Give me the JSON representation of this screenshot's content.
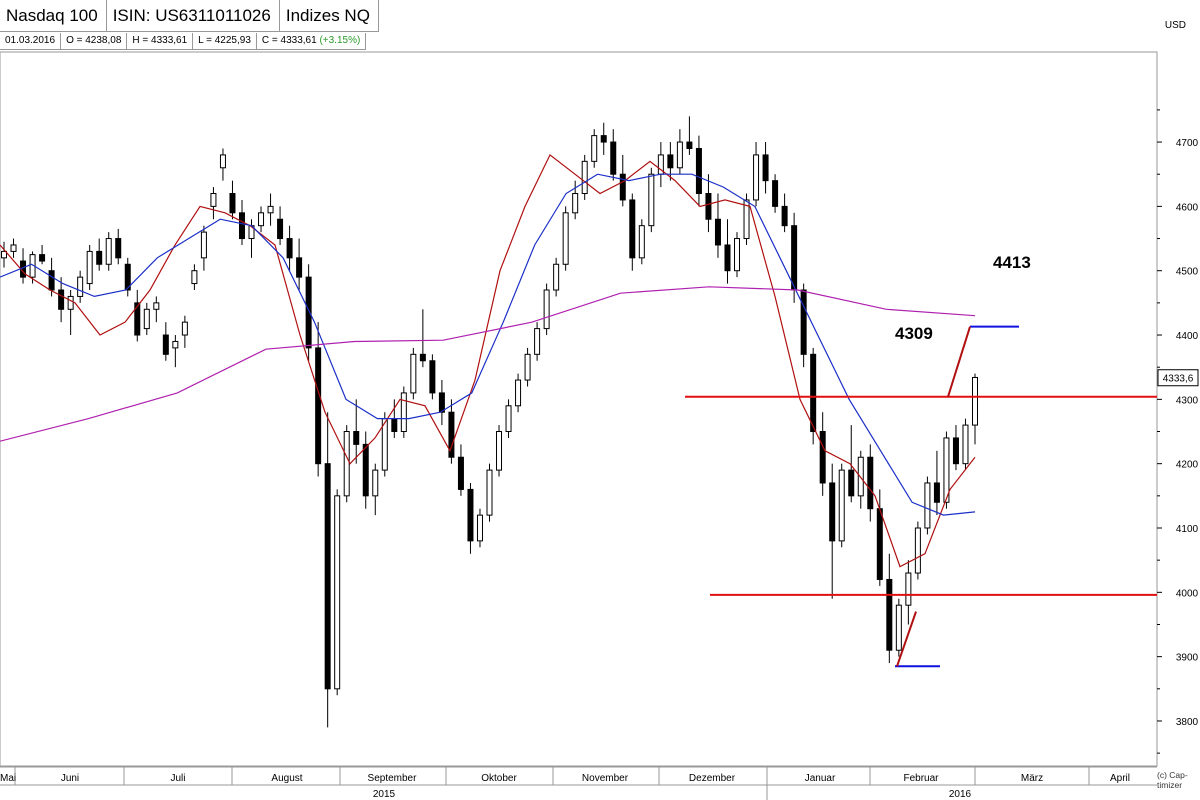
{
  "header": {
    "title": "Nasdaq 100",
    "isin": "ISIN: US6311011026",
    "exchange": "Indizes NQ"
  },
  "quote": {
    "date": "01.03.2016",
    "open": "O = 4238,08",
    "high": "H = 4333,61",
    "low": "L = 4225,93",
    "close": "C = 4333,61",
    "change": "(+3.15%)"
  },
  "currency": "USD",
  "copyright_line1": "(c) Cap-",
  "copyright_line2": "timizer",
  "chart_data": {
    "type": "line",
    "title": "",
    "ylim": [
      3730,
      4840
    ],
    "y_ticks": [
      3800,
      3900,
      4000,
      4100,
      4200,
      4300,
      4400,
      4500,
      4600,
      4700
    ],
    "y_tick_labels": [
      "3800",
      "3900",
      "4000",
      "4100",
      "4200",
      "4300",
      "4400",
      "4500",
      "4600",
      "4700"
    ],
    "last_price_label": "4333,6",
    "x_months": [
      "Mai",
      "Juni",
      "Juli",
      "August",
      "September",
      "Oktober",
      "November",
      "Dezember",
      "Januar",
      "Februar",
      "März",
      "April"
    ],
    "x_years": [
      "2015",
      "2016"
    ],
    "annotations": [
      {
        "text": "4413",
        "value": 4413
      },
      {
        "text": "4309",
        "value": 4309
      }
    ],
    "horizontal_lines": [
      4304,
      3996
    ],
    "target_lines": [
      4413,
      3885
    ],
    "series": [
      {
        "name": "",
        "color": "#b01010",
        "role": "fast moving average",
        "points": [
          [
            "Mai",
            4540
          ],
          [
            "Juni",
            4495
          ],
          [
            "Juni",
            4470
          ],
          [
            "Juli",
            4450
          ],
          [
            "Juli",
            4400
          ],
          [
            "Juli",
            4420
          ],
          [
            "Juli",
            4470
          ],
          [
            "Juli",
            4540
          ],
          [
            "Juli",
            4600
          ],
          [
            "August",
            4590
          ],
          [
            "August",
            4570
          ],
          [
            "August",
            4540
          ],
          [
            "August",
            4400
          ],
          [
            "August",
            4280
          ],
          [
            "September",
            4200
          ],
          [
            "September",
            4240
          ],
          [
            "September",
            4300
          ],
          [
            "September",
            4290
          ],
          [
            "Oktober",
            4220
          ],
          [
            "Oktober",
            4330
          ],
          [
            "Oktober",
            4500
          ],
          [
            "Oktober",
            4600
          ],
          [
            "November",
            4680
          ],
          [
            "November",
            4650
          ],
          [
            "November",
            4620
          ],
          [
            "November",
            4640
          ],
          [
            "November",
            4670
          ],
          [
            "Dezember",
            4640
          ],
          [
            "Dezember",
            4600
          ],
          [
            "Dezember",
            4610
          ],
          [
            "Dezember",
            4600
          ],
          [
            "Januar",
            4460
          ],
          [
            "Januar",
            4300
          ],
          [
            "Januar",
            4220
          ],
          [
            "Januar",
            4200
          ],
          [
            "Februar",
            4150
          ],
          [
            "Februar",
            4040
          ],
          [
            "Februar",
            4060
          ],
          [
            "Februar",
            4160
          ],
          [
            "Februar",
            4210
          ]
        ]
      },
      {
        "name": "",
        "color": "#1b2fc7",
        "role": "slow moving average",
        "points": [
          [
            "Mai",
            4490
          ],
          [
            "Juni",
            4510
          ],
          [
            "Juni",
            4480
          ],
          [
            "Juli",
            4460
          ],
          [
            "Juli",
            4470
          ],
          [
            "Juli",
            4520
          ],
          [
            "Juli",
            4550
          ],
          [
            "Juli",
            4580
          ],
          [
            "August",
            4570
          ],
          [
            "August",
            4520
          ],
          [
            "August",
            4420
          ],
          [
            "September",
            4300
          ],
          [
            "September",
            4270
          ],
          [
            "September",
            4270
          ],
          [
            "Oktober",
            4280
          ],
          [
            "Oktober",
            4310
          ],
          [
            "Oktober",
            4420
          ],
          [
            "Oktober",
            4540
          ],
          [
            "November",
            4620
          ],
          [
            "November",
            4650
          ],
          [
            "November",
            4640
          ],
          [
            "November",
            4650
          ],
          [
            "Dezember",
            4650
          ],
          [
            "Dezember",
            4630
          ],
          [
            "Dezember",
            4600
          ],
          [
            "Januar",
            4500
          ],
          [
            "Januar",
            4400
          ],
          [
            "Januar",
            4300
          ],
          [
            "Januar",
            4220
          ],
          [
            "Februar",
            4140
          ],
          [
            "Februar",
            4120
          ],
          [
            "Februar",
            4125
          ]
        ]
      },
      {
        "name": "",
        "color": "#b020b0",
        "role": "long moving average",
        "points": [
          [
            "Mai",
            4235
          ],
          [
            "Juni",
            4270
          ],
          [
            "Juli",
            4310
          ],
          [
            "August",
            4378
          ],
          [
            "September",
            4390
          ],
          [
            "Oktober",
            4392
          ],
          [
            "November",
            4420
          ],
          [
            "Dezember",
            4465
          ],
          [
            "Januar",
            4475
          ],
          [
            "Januar",
            4470
          ],
          [
            "Februar",
            4440
          ],
          [
            "Februar",
            4430
          ]
        ]
      }
    ],
    "candles_ohlc": [
      [
        4520,
        4545,
        4505,
        4530
      ],
      [
        4530,
        4550,
        4520,
        4540
      ],
      [
        4515,
        4535,
        4480,
        4490
      ],
      [
        4490,
        4530,
        4480,
        4525
      ],
      [
        4525,
        4540,
        4510,
        4515
      ],
      [
        4500,
        4520,
        4460,
        4470
      ],
      [
        4470,
        4490,
        4420,
        4440
      ],
      [
        4440,
        4470,
        4400,
        4460
      ],
      [
        4460,
        4500,
        4450,
        4490
      ],
      [
        4480,
        4540,
        4470,
        4530
      ],
      [
        4530,
        4550,
        4500,
        4510
      ],
      [
        4510,
        4560,
        4500,
        4550
      ],
      [
        4550,
        4565,
        4510,
        4520
      ],
      [
        4510,
        4520,
        4460,
        4470
      ],
      [
        4450,
        4470,
        4390,
        4400
      ],
      [
        4410,
        4450,
        4400,
        4440
      ],
      [
        4440,
        4460,
        4420,
        4450
      ],
      [
        4400,
        4420,
        4360,
        4370
      ],
      [
        4380,
        4400,
        4350,
        4390
      ],
      [
        4400,
        4430,
        4380,
        4420
      ],
      [
        4480,
        4510,
        4470,
        4500
      ],
      [
        4520,
        4570,
        4500,
        4560
      ],
      [
        4600,
        4630,
        4580,
        4620
      ],
      [
        4660,
        4690,
        4640,
        4680
      ],
      [
        4620,
        4640,
        4580,
        4590
      ],
      [
        4590,
        4610,
        4540,
        4550
      ],
      [
        4550,
        4580,
        4520,
        4570
      ],
      [
        4570,
        4600,
        4560,
        4590
      ],
      [
        4590,
        4620,
        4570,
        4600
      ],
      [
        4580,
        4600,
        4540,
        4550
      ],
      [
        4550,
        4570,
        4500,
        4520
      ],
      [
        4520,
        4550,
        4470,
        4490
      ],
      [
        4490,
        4510,
        4360,
        4380
      ],
      [
        4380,
        4420,
        4180,
        4200
      ],
      [
        4200,
        4280,
        3790,
        3850
      ],
      [
        3850,
        4160,
        3840,
        4150
      ],
      [
        4150,
        4260,
        4140,
        4250
      ],
      [
        4250,
        4300,
        4200,
        4230
      ],
      [
        4230,
        4250,
        4130,
        4150
      ],
      [
        4150,
        4200,
        4120,
        4190
      ],
      [
        4190,
        4280,
        4180,
        4270
      ],
      [
        4270,
        4300,
        4240,
        4250
      ],
      [
        4250,
        4320,
        4240,
        4310
      ],
      [
        4310,
        4380,
        4300,
        4370
      ],
      [
        4370,
        4440,
        4350,
        4360
      ],
      [
        4360,
        4370,
        4300,
        4310
      ],
      [
        4310,
        4330,
        4260,
        4280
      ],
      [
        4280,
        4300,
        4200,
        4210
      ],
      [
        4210,
        4230,
        4150,
        4160
      ],
      [
        4160,
        4170,
        4060,
        4080
      ],
      [
        4080,
        4130,
        4070,
        4120
      ],
      [
        4120,
        4200,
        4110,
        4190
      ],
      [
        4190,
        4260,
        4180,
        4250
      ],
      [
        4250,
        4300,
        4240,
        4290
      ],
      [
        4290,
        4340,
        4280,
        4330
      ],
      [
        4330,
        4380,
        4320,
        4370
      ],
      [
        4370,
        4420,
        4360,
        4410
      ],
      [
        4410,
        4480,
        4400,
        4470
      ],
      [
        4470,
        4520,
        4460,
        4510
      ],
      [
        4510,
        4600,
        4500,
        4590
      ],
      [
        4590,
        4640,
        4580,
        4620
      ],
      [
        4620,
        4680,
        4610,
        4670
      ],
      [
        4670,
        4720,
        4660,
        4710
      ],
      [
        4710,
        4730,
        4680,
        4700
      ],
      [
        4700,
        4720,
        4640,
        4650
      ],
      [
        4650,
        4680,
        4600,
        4610
      ],
      [
        4610,
        4620,
        4500,
        4520
      ],
      [
        4520,
        4580,
        4510,
        4570
      ],
      [
        4570,
        4660,
        4560,
        4650
      ],
      [
        4650,
        4700,
        4630,
        4680
      ],
      [
        4680,
        4700,
        4640,
        4660
      ],
      [
        4660,
        4720,
        4650,
        4700
      ],
      [
        4700,
        4740,
        4680,
        4690
      ],
      [
        4690,
        4710,
        4600,
        4620
      ],
      [
        4620,
        4650,
        4560,
        4580
      ],
      [
        4580,
        4620,
        4520,
        4540
      ],
      [
        4540,
        4580,
        4480,
        4500
      ],
      [
        4500,
        4560,
        4490,
        4550
      ],
      [
        4550,
        4620,
        4540,
        4610
      ],
      [
        4610,
        4700,
        4600,
        4680
      ],
      [
        4680,
        4700,
        4620,
        4640
      ],
      [
        4640,
        4650,
        4590,
        4600
      ],
      [
        4600,
        4620,
        4560,
        4570
      ],
      [
        4570,
        4590,
        4450,
        4470
      ],
      [
        4470,
        4480,
        4350,
        4370
      ],
      [
        4370,
        4380,
        4230,
        4250
      ],
      [
        4250,
        4280,
        4150,
        4170
      ],
      [
        4170,
        4200,
        3990,
        4080
      ],
      [
        4080,
        4200,
        4070,
        4190
      ],
      [
        4190,
        4260,
        4140,
        4150
      ],
      [
        4150,
        4220,
        4130,
        4210
      ],
      [
        4210,
        4230,
        4110,
        4130
      ],
      [
        4130,
        4160,
        4010,
        4020
      ],
      [
        4020,
        4060,
        3890,
        3910
      ],
      [
        3910,
        3990,
        3900,
        3980
      ],
      [
        3980,
        4050,
        3950,
        4030
      ],
      [
        4030,
        4110,
        4020,
        4100
      ],
      [
        4100,
        4180,
        4090,
        4170
      ],
      [
        4170,
        4220,
        4120,
        4140
      ],
      [
        4140,
        4250,
        4130,
        4240
      ],
      [
        4240,
        4260,
        4190,
        4200
      ],
      [
        4200,
        4270,
        4190,
        4260
      ],
      [
        4260,
        4340,
        4230,
        4334
      ]
    ]
  }
}
